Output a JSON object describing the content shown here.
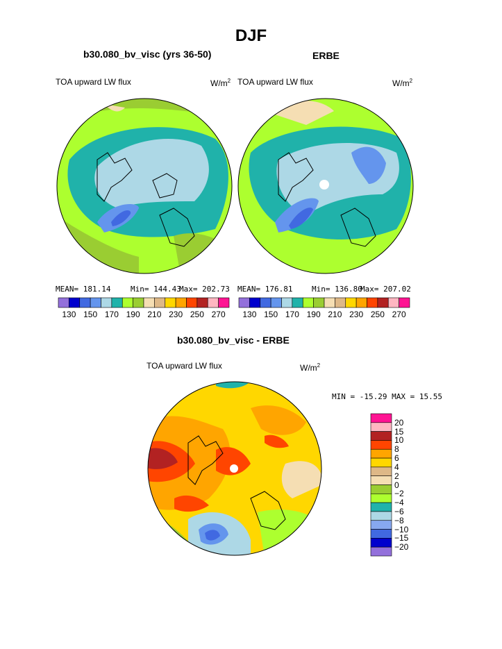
{
  "title": "DJF",
  "panels": [
    {
      "case": "b30.080_bv_visc (yrs 36-50)",
      "variable": "TOA upward LW flux",
      "units": {
        "base": "W/m",
        "sup": "2"
      },
      "stats": {
        "mean": "MEAN= 181.14",
        "min": "Min= 144.43",
        "max": "Max= 202.73"
      },
      "colorbar_labels": [
        "130",
        "150",
        "170",
        "190",
        "210",
        "230",
        "250",
        "270"
      ]
    },
    {
      "case": "ERBE",
      "variable": "TOA upward LW flux",
      "units": {
        "base": "W/m",
        "sup": "2"
      },
      "stats": {
        "mean": "MEAN= 176.81",
        "min": "Min= 136.80",
        "max": "Max= 207.02"
      },
      "colorbar_labels": [
        "130",
        "150",
        "170",
        "190",
        "210",
        "230",
        "250",
        "270"
      ]
    }
  ],
  "difference": {
    "title": "b30.080_bv_visc - ERBE",
    "variable": "TOA upward LW flux",
    "units": {
      "base": "W/m",
      "sup": "2"
    },
    "minmax": "MIN = -15.29 MAX =  15.55",
    "colorbar_labels": [
      "20",
      "15",
      "10",
      "8",
      "6",
      "4",
      "2",
      "0",
      "−2",
      "−4",
      "−6",
      "−8",
      "−10",
      "−15",
      "−20"
    ]
  },
  "chart_data": [
    {
      "type": "heatmap",
      "projection": "north polar stereographic",
      "title": "b30.080_bv_visc (yrs 36-50)",
      "variable": "TOA upward LW flux",
      "units": "W/m2",
      "stats": {
        "mean": 181.14,
        "min": 144.43,
        "max": 202.73
      },
      "levels": [
        130,
        140,
        150,
        160,
        170,
        180,
        190,
        200,
        210,
        220,
        230,
        240,
        250,
        260,
        270
      ],
      "colors": [
        "#9370db",
        "#0000cd",
        "#4169e1",
        "#6495ed",
        "#add8e6",
        "#20b2aa",
        "#adff2f",
        "#9acd32",
        "#f5deb3",
        "#deb887",
        "#ffd700",
        "#ffa500",
        "#ff4500",
        "#b22222",
        "#ffb6c1",
        "#ff1493"
      ]
    },
    {
      "type": "heatmap",
      "projection": "north polar stereographic",
      "title": "ERBE",
      "variable": "TOA upward LW flux",
      "units": "W/m2",
      "stats": {
        "mean": 176.81,
        "min": 136.8,
        "max": 207.02
      },
      "levels": [
        130,
        140,
        150,
        160,
        170,
        180,
        190,
        200,
        210,
        220,
        230,
        240,
        250,
        260,
        270
      ],
      "colors": [
        "#9370db",
        "#0000cd",
        "#4169e1",
        "#6495ed",
        "#add8e6",
        "#20b2aa",
        "#adff2f",
        "#9acd32",
        "#f5deb3",
        "#deb887",
        "#ffd700",
        "#ffa500",
        "#ff4500",
        "#b22222",
        "#ffb6c1",
        "#ff1493"
      ]
    },
    {
      "type": "heatmap",
      "projection": "north polar stereographic",
      "title": "b30.080_bv_visc - ERBE",
      "variable": "TOA upward LW flux",
      "units": "W/m2",
      "stats": {
        "min": -15.29,
        "max": 15.55
      },
      "levels": [
        -20,
        -15,
        -10,
        -8,
        -6,
        -4,
        -2,
        0,
        2,
        4,
        6,
        8,
        10,
        15,
        20
      ],
      "colors": [
        "#9370db",
        "#0000cd",
        "#4169e1",
        "#87a8f0",
        "#add8e6",
        "#20b2aa",
        "#adff2f",
        "#9acd32",
        "#f5deb3",
        "#deb887",
        "#ffd700",
        "#ffa500",
        "#ff4500",
        "#b22222",
        "#ffb6c1",
        "#ff1493"
      ]
    }
  ]
}
